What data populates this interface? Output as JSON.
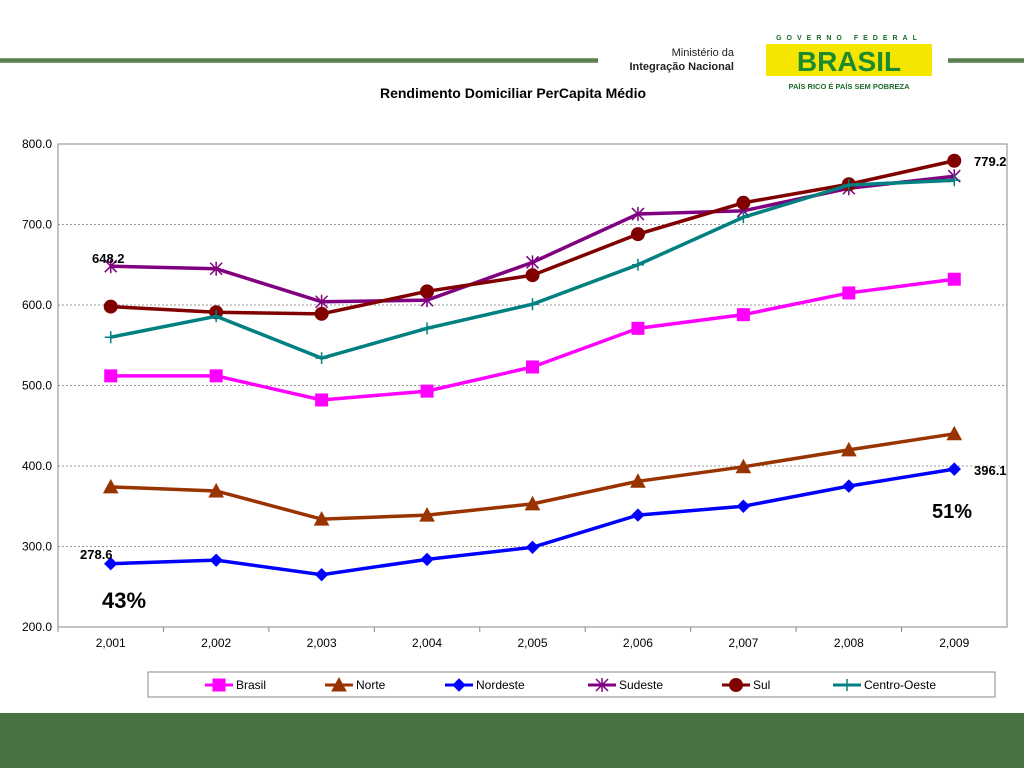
{
  "header": {
    "ministry_line1": "Ministério da",
    "ministry_line2": "Integração Nacional",
    "logo_top": "GOVERNO FEDERAL",
    "logo_main": "BRASIL",
    "logo_bottom": "PAÍS RICO É PAÍS SEM POBREZA"
  },
  "chart_data": {
    "type": "line",
    "title": "Rendimento Domiciliar PerCapita Médio",
    "categories": [
      "2,001",
      "2,002",
      "2,003",
      "2,004",
      "2,005",
      "2,006",
      "2,007",
      "2,008",
      "2,009"
    ],
    "ylim": [
      200,
      800
    ],
    "yticks": [
      "200.0",
      "300.0",
      "400.0",
      "500.0",
      "600.0",
      "700.0",
      "800.0"
    ],
    "grid": true,
    "legend": "bottom",
    "series": [
      {
        "name": "Brasil",
        "color": "#ff00ff",
        "marker": "square",
        "values": [
          512,
          512,
          482,
          493,
          523,
          571,
          588,
          615,
          632
        ]
      },
      {
        "name": "Norte",
        "color": "#993300",
        "marker": "triangle",
        "values": [
          374,
          369,
          334,
          339,
          353,
          381,
          399,
          420,
          440
        ]
      },
      {
        "name": "Nordeste",
        "color": "#0000ff",
        "marker": "diamond",
        "values": [
          278.6,
          283,
          265,
          284,
          299,
          339,
          350,
          375,
          396.1
        ]
      },
      {
        "name": "Sudeste",
        "color": "#800080",
        "marker": "star",
        "values": [
          648.2,
          645,
          604,
          606,
          653,
          713,
          717,
          745,
          760
        ]
      },
      {
        "name": "Sul",
        "color": "#800000",
        "marker": "circle",
        "values": [
          598,
          591,
          589,
          617,
          637,
          688,
          727,
          750,
          779.2
        ]
      },
      {
        "name": "Centro-Oeste",
        "color": "#008080",
        "marker": "plus",
        "values": [
          560,
          586,
          534,
          571,
          601,
          650,
          709,
          749,
          755
        ]
      }
    ],
    "annotations": {
      "label_648": "648.2",
      "label_278": "278.6",
      "label_779": "779.2",
      "label_396": "396.1",
      "pct_nordeste_start": "43%",
      "pct_nordeste_end": "51%"
    }
  }
}
